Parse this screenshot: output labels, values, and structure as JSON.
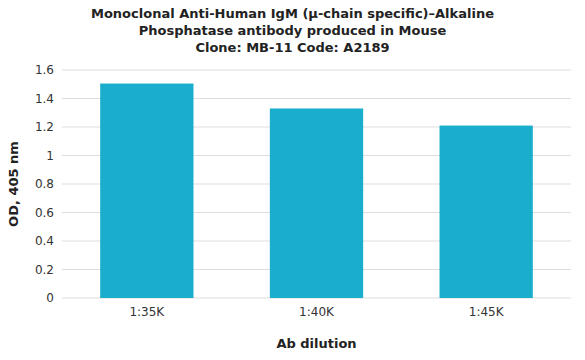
{
  "chart_data": {
    "type": "bar",
    "title": "Monoclonal Anti-Human IgM (μ-chain specific)–Alkaline\nPhosphatase antibody produced in Mouse\nClone: MB-11  Code: A2189",
    "xlabel": "Ab dilution",
    "ylabel": "OD, 405 nm",
    "categories": [
      "1:35K",
      "1:40K",
      "1:45K"
    ],
    "values": [
      1.505,
      1.33,
      1.21
    ],
    "color": "#1AAECC",
    "ylim": [
      0,
      1.6
    ],
    "yticks": [
      0,
      0.2,
      0.4,
      0.6,
      0.8,
      1,
      1.2,
      1.4,
      1.6
    ],
    "grid": true
  }
}
